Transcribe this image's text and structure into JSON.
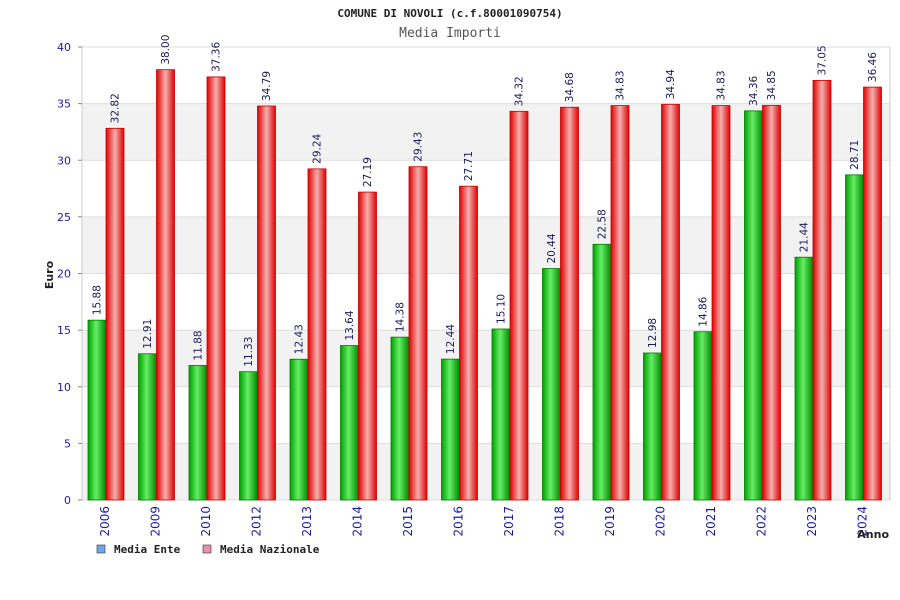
{
  "chart_data": {
    "type": "bar",
    "title": "COMUNE DI NOVOLI (c.f.80001090754)",
    "subtitle": "Media Importi",
    "ylabel": "Euro",
    "xlabel": "Anno",
    "ylim": [
      0,
      40
    ],
    "yticks": [
      0,
      5,
      10,
      15,
      20,
      25,
      30,
      35,
      40
    ],
    "categories": [
      "2006",
      "2009",
      "2010",
      "2012",
      "2013",
      "2014",
      "2015",
      "2016",
      "2017",
      "2018",
      "2019",
      "2020",
      "2021",
      "2022",
      "2023",
      "2024"
    ],
    "series": [
      {
        "name": "Media Ente",
        "values": [
          15.88,
          12.91,
          11.88,
          11.33,
          12.43,
          13.64,
          14.38,
          12.44,
          15.1,
          20.44,
          22.58,
          12.98,
          14.86,
          34.36,
          21.44,
          28.71
        ],
        "labels": [
          "15.88",
          "12.91",
          "11.88",
          "11.33",
          "12.43",
          "13.64",
          "14.38",
          "12.44",
          "15.10",
          "20.44",
          "22.58",
          "12.98",
          "14.86",
          "34.36",
          "21.44",
          "28.71"
        ],
        "color": "#00b000",
        "legend_color": "#6fa8e8"
      },
      {
        "name": "Media Nazionale",
        "values": [
          32.82,
          38.0,
          37.36,
          34.79,
          29.24,
          27.19,
          29.43,
          27.71,
          34.32,
          34.68,
          34.83,
          34.94,
          34.83,
          34.85,
          37.05,
          36.46
        ],
        "labels": [
          "32.82",
          "38.00",
          "37.36",
          "34.79",
          "29.24",
          "27.19",
          "29.43",
          "27.71",
          "34.32",
          "34.68",
          "34.83",
          "34.94",
          "34.83",
          "34.85",
          "37.05",
          "36.46"
        ],
        "color": "#ee1111",
        "legend_color": "#e88fb0"
      }
    ]
  }
}
